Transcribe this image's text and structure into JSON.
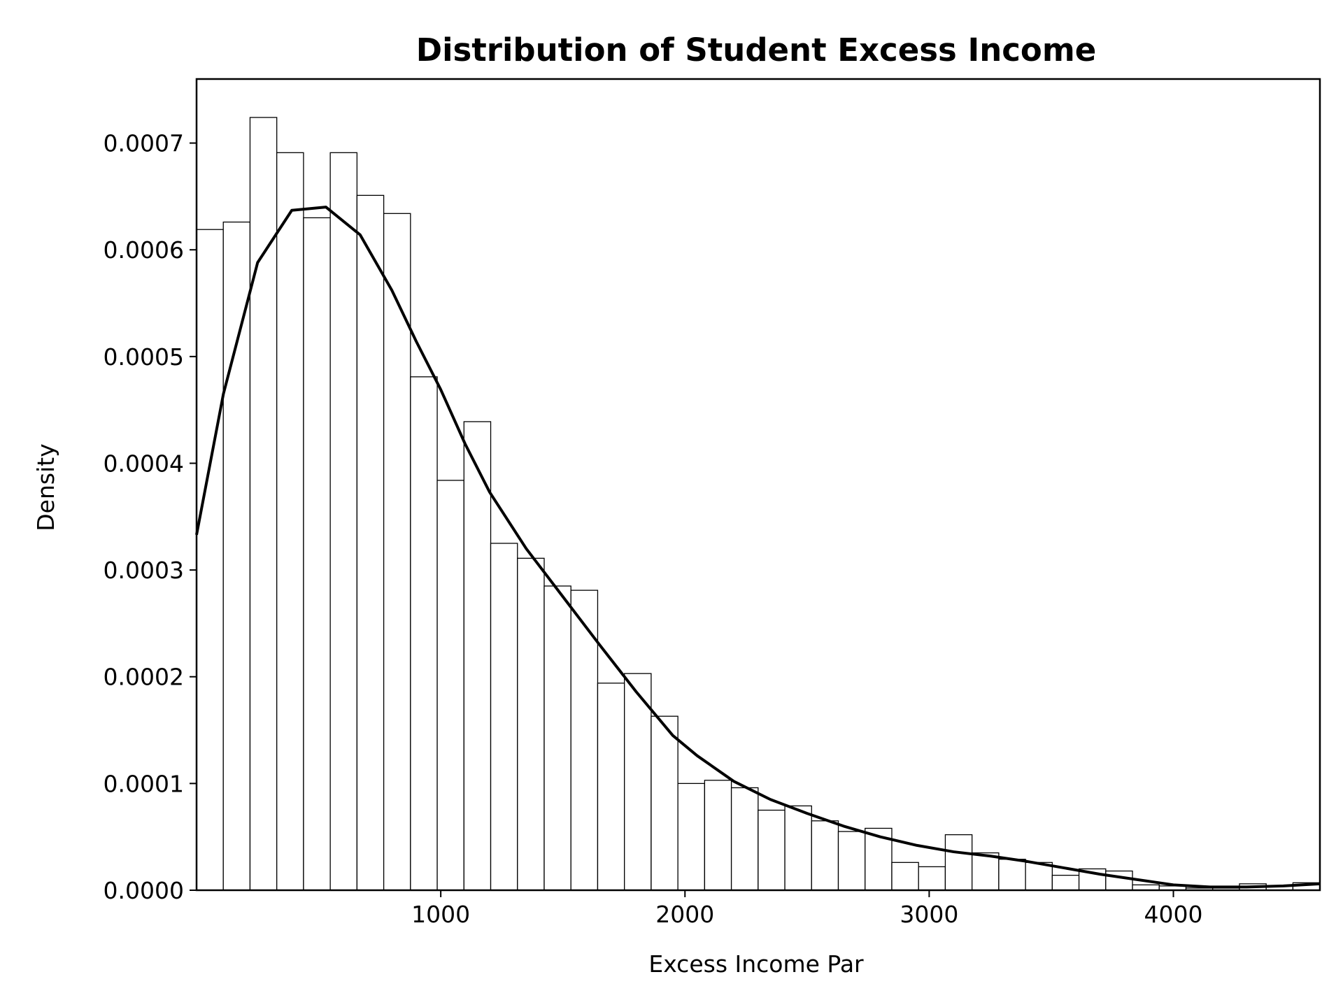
{
  "chart_data": {
    "type": "bar",
    "title": "Distribution of Student Excess Income",
    "xlabel": "Excess Income Par",
    "ylabel": "Density",
    "xlim": [
      0,
      4600
    ],
    "ylim": [
      0,
      0.00076
    ],
    "xticks": [
      1000,
      2000,
      3000,
      4000
    ],
    "xtick_labels": [
      "1000",
      "2000",
      "3000",
      "4000"
    ],
    "yticks": [
      0,
      0.0001,
      0.0002,
      0.0003,
      0.0004,
      0.0005,
      0.0006,
      0.0007
    ],
    "ytick_labels": [
      "0.0000",
      "0.0001",
      "0.0002",
      "0.0003",
      "0.0004",
      "0.0005",
      "0.0006",
      "0.0007"
    ],
    "grid": false,
    "bins": {
      "start": 0,
      "width": 109.5,
      "values": [
        0.000619,
        0.000626,
        0.000724,
        0.000691,
        0.00063,
        0.000691,
        0.000651,
        0.000634,
        0.000481,
        0.000384,
        0.000439,
        0.000325,
        0.000311,
        0.000285,
        0.000281,
        0.000194,
        0.000203,
        0.000163,
        0.0001,
        0.000103,
        9.6e-05,
        7.5e-05,
        7.9e-05,
        6.5e-05,
        5.5e-05,
        5.8e-05,
        2.6e-05,
        2.2e-05,
        5.2e-05,
        3.5e-05,
        2.9e-05,
        2.6e-05,
        1.4e-05,
        2e-05,
        1.8e-05,
        5e-06,
        4e-06,
        2e-06,
        2e-06,
        6e-06,
        4e-06,
        7e-06
      ]
    },
    "kde": {
      "x": [
        0,
        110,
        250,
        390,
        530,
        670,
        800,
        900,
        1000,
        1100,
        1200,
        1350,
        1500,
        1650,
        1800,
        1950,
        2050,
        2200,
        2350,
        2500,
        2650,
        2800,
        2950,
        3100,
        3250,
        3400,
        3550,
        3700,
        3850,
        4000,
        4150,
        4300,
        4450,
        4600
      ],
      "y": [
        0.000333,
        0.000465,
        0.000588,
        0.000637,
        0.00064,
        0.000614,
        0.000562,
        0.000514,
        0.000469,
        0.000418,
        0.000373,
        0.00032,
        0.000275,
        0.00023,
        0.000186,
        0.000145,
        0.000126,
        0.000102,
        8.5e-05,
        7.2e-05,
        6e-05,
        5e-05,
        4.2e-05,
        3.6e-05,
        3.2e-05,
        2.7e-05,
        2.1e-05,
        1.5e-05,
        1e-05,
        5e-06,
        3e-06,
        3e-06,
        4e-06,
        6e-06
      ]
    }
  }
}
